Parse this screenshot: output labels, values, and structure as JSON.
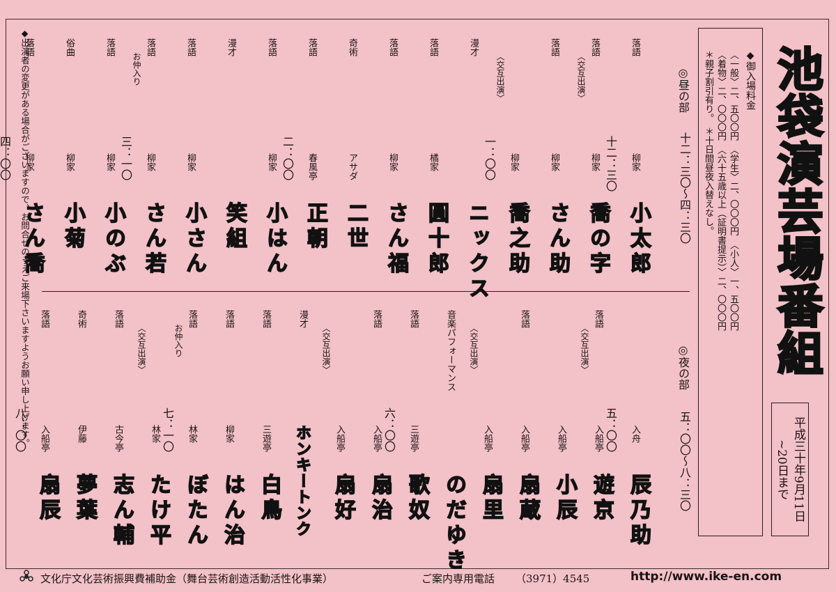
{
  "title": "池袋演芸場番組",
  "date": "平成三十年9月11日~20日まで",
  "prices": {
    "heading": "◆御入場料金",
    "lines": [
      "〈一般〉二、五〇〇円　〈学生〉二、〇〇〇円　〈小人〉一、五〇〇円",
      "〈着物〉二、〇〇〇円　〈六十五歳以上（証明書提示）〉二、〇〇〇円",
      "＊親子割引有り。",
      "＊十日間昼夜入替えなし。"
    ]
  },
  "notice": "◆出演者の変更がある場合がございますので、お問合せのうえご来場下さいますようお願い申し上げます。",
  "day": {
    "label": "◎昼の部",
    "hours": "十二：三〇～四：三〇",
    "items": [
      {
        "time": "十二：三〇",
        "genre": "落語",
        "house": "柳家",
        "name": "小太郎"
      },
      {
        "genre": "落語",
        "note": "〈交互出演〉",
        "house": "柳家",
        "name": "喬の字"
      },
      {
        "genre": "落語",
        "house": "柳家",
        "name": "さん助"
      },
      {
        "genre": "",
        "note": "〈交互出演〉",
        "house": "柳家",
        "name": "喬之助",
        "time": "一：〇〇"
      },
      {
        "genre": "漫才",
        "house": "",
        "name": "ニックス"
      },
      {
        "genre": "落語",
        "house": "橘家",
        "name": "圓十郎"
      },
      {
        "genre": "落語",
        "house": "柳家",
        "name": "さん福"
      },
      {
        "genre": "奇術",
        "house": "アサダ",
        "name": "二世"
      },
      {
        "time": "二：〇〇",
        "genre": "落語",
        "house": "春風亭",
        "name": "正朝"
      },
      {
        "genre": "落語",
        "house": "柳家",
        "name": "小はん"
      },
      {
        "genre": "漫才",
        "house": "",
        "name": "笑組"
      },
      {
        "genre": "落語",
        "house": "柳家",
        "name": "小さん"
      },
      {
        "time": "三：一〇",
        "note": "お仲入り",
        "genre": "落語",
        "house": "柳家",
        "name": "さん若"
      },
      {
        "genre": "落語",
        "house": "柳家",
        "name": "小のぶ"
      },
      {
        "genre": "俗曲",
        "house": "柳家",
        "name": "小菊"
      },
      {
        "time": "四：〇〇",
        "genre": "落語",
        "house": "柳家",
        "name": "さん喬"
      }
    ]
  },
  "night": {
    "label": "◎夜の部",
    "hours": "五：〇〇～八：三〇",
    "items": [
      {
        "time": "五：〇〇",
        "genre": "",
        "house": "入舟",
        "name": "辰乃助"
      },
      {
        "genre": "落語",
        "note": "〈交互出演〉",
        "house": "入船亭",
        "name": "遊京"
      },
      {
        "genre": "",
        "house": "入船亭",
        "name": "小辰"
      },
      {
        "genre": "落語",
        "house": "入船亭",
        "name": "扇蔵"
      },
      {
        "genre": "",
        "note": "〈交互出演〉",
        "house": "入船亭",
        "name": "扇里"
      },
      {
        "genre": "音楽パフォーマンス",
        "house": "",
        "name": "のだゆき"
      },
      {
        "genre": "落語",
        "house": "三遊亭",
        "name": "歌奴",
        "time": "六：〇〇"
      },
      {
        "genre": "落語",
        "house": "入船亭",
        "name": "扇治"
      },
      {
        "genre": "",
        "note": "〈交互出演〉",
        "house": "入船亭",
        "name": "扇好"
      },
      {
        "genre": "漫才",
        "house": "",
        "name": "ホンキートンク"
      },
      {
        "genre": "落語",
        "house": "三遊亭",
        "name": "白鳥"
      },
      {
        "genre": "落語",
        "house": "柳家",
        "name": "はん治"
      },
      {
        "time": "七：一〇",
        "note": "お仲入り",
        "genre": "落語",
        "house": "林家",
        "name": "ぼたん"
      },
      {
        "genre": "",
        "note": "〈交互出演〉",
        "house": "林家",
        "name": "たけ平"
      },
      {
        "genre": "落語",
        "house": "古今亭",
        "name": "志ん輔"
      },
      {
        "genre": "奇術",
        "house": "伊藤",
        "name": "夢葉"
      },
      {
        "time": "八：〇〇",
        "genre": "落語",
        "house": "入船亭",
        "name": "扇辰"
      }
    ]
  },
  "footer": {
    "subsidy": "文化庁文化芸術振興費補助金（舞台芸術創造活動活性化事業）",
    "phone_label": "ご案内専用電話",
    "phone": "（3971）4545",
    "url": "http://www.ike-en.com"
  }
}
